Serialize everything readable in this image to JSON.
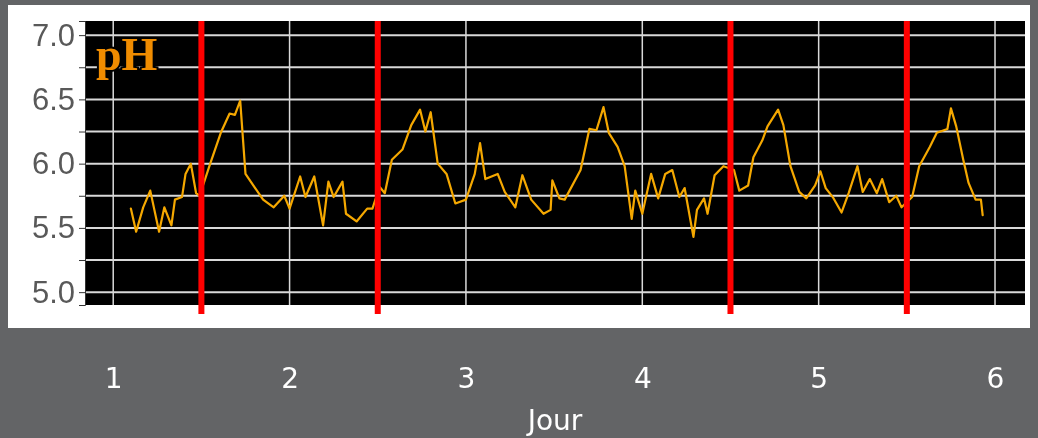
{
  "chart_data": {
    "type": "line",
    "title": "pH",
    "xlabel": "Jour",
    "xlim": [
      0.84,
      6.17
    ],
    "xticks": [
      1,
      2,
      3,
      4,
      5,
      6
    ],
    "ylim": [
      4.9,
      7.11
    ],
    "yticks": [
      {
        "value": 5.0,
        "label": "5.0"
      },
      {
        "value": 5.25,
        "label": null
      },
      {
        "value": 5.5,
        "label": "5.5"
      },
      {
        "value": 5.75,
        "label": null
      },
      {
        "value": 6.0,
        "label": "6.0"
      },
      {
        "value": 6.25,
        "label": null
      },
      {
        "value": 6.5,
        "label": "6.5"
      },
      {
        "value": 6.75,
        "label": null
      },
      {
        "value": 7.0,
        "label": "7.0"
      }
    ],
    "grid": true,
    "marker": "none",
    "line_style": "solid",
    "ref_lines": [
      {
        "axis": "x",
        "value": 1.5,
        "color": "#ff0000"
      },
      {
        "axis": "x",
        "value": 2.5,
        "color": "#ff0000"
      },
      {
        "axis": "x",
        "value": 4.5,
        "color": "#ff0000"
      },
      {
        "axis": "x",
        "value": 5.5,
        "color": "#ff0000"
      }
    ],
    "series": [
      {
        "color": "#f5a800",
        "x": [
          1.1,
          1.13,
          1.17,
          1.21,
          1.26,
          1.29,
          1.33,
          1.35,
          1.39,
          1.41,
          1.44,
          1.47,
          1.49,
          1.55,
          1.61,
          1.66,
          1.69,
          1.72,
          1.75,
          1.8,
          1.85,
          1.91,
          1.97,
          2.0,
          2.06,
          2.09,
          2.14,
          2.19,
          2.22,
          2.25,
          2.3,
          2.32,
          2.38,
          2.44,
          2.47,
          2.51,
          2.54,
          2.58,
          2.64,
          2.69,
          2.74,
          2.77,
          2.8,
          2.84,
          2.89,
          2.94,
          3.0,
          3.05,
          3.08,
          3.11,
          3.18,
          3.22,
          3.28,
          3.32,
          3.37,
          3.44,
          3.48,
          3.49,
          3.53,
          3.56,
          3.65,
          3.7,
          3.74,
          3.78,
          3.81,
          3.86,
          3.9,
          3.94,
          3.96,
          4.0,
          4.05,
          4.09,
          4.13,
          4.17,
          4.21,
          4.24,
          4.29,
          4.31,
          4.35,
          4.37,
          4.41,
          4.46,
          4.52,
          4.55,
          4.6,
          4.63,
          4.68,
          4.71,
          4.77,
          4.8,
          4.84,
          4.89,
          4.93,
          4.98,
          5.01,
          5.04,
          5.08,
          5.13,
          5.17,
          5.22,
          5.25,
          5.29,
          5.33,
          5.36,
          5.4,
          5.44,
          5.47,
          5.53,
          5.57,
          5.63,
          5.67,
          5.73,
          5.75,
          5.78,
          5.82,
          5.85,
          5.89,
          5.92,
          5.93
        ],
        "values": [
          5.65,
          5.47,
          5.66,
          5.79,
          5.47,
          5.66,
          5.52,
          5.72,
          5.74,
          5.92,
          6.0,
          5.77,
          5.75,
          6.0,
          6.24,
          6.39,
          6.38,
          6.49,
          5.92,
          5.82,
          5.72,
          5.66,
          5.75,
          5.65,
          5.9,
          5.74,
          5.9,
          5.52,
          5.86,
          5.74,
          5.86,
          5.61,
          5.55,
          5.65,
          5.65,
          5.82,
          5.77,
          6.03,
          6.11,
          6.3,
          6.42,
          6.25,
          6.4,
          6.0,
          5.92,
          5.69,
          5.72,
          5.92,
          6.16,
          5.88,
          5.92,
          5.78,
          5.66,
          5.91,
          5.72,
          5.61,
          5.64,
          5.87,
          5.73,
          5.72,
          5.95,
          6.27,
          6.26,
          6.44,
          6.24,
          6.13,
          5.98,
          5.57,
          5.79,
          5.61,
          5.92,
          5.73,
          5.92,
          5.95,
          5.74,
          5.81,
          5.43,
          5.64,
          5.73,
          5.61,
          5.91,
          5.98,
          5.95,
          5.79,
          5.83,
          6.05,
          6.18,
          6.29,
          6.42,
          6.3,
          5.98,
          5.78,
          5.73,
          5.83,
          5.94,
          5.81,
          5.74,
          5.62,
          5.77,
          5.98,
          5.78,
          5.88,
          5.77,
          5.88,
          5.7,
          5.75,
          5.66,
          5.74,
          5.98,
          6.13,
          6.24,
          6.27,
          6.43,
          6.29,
          6.03,
          5.85,
          5.72,
          5.72,
          5.6
        ]
      }
    ]
  }
}
